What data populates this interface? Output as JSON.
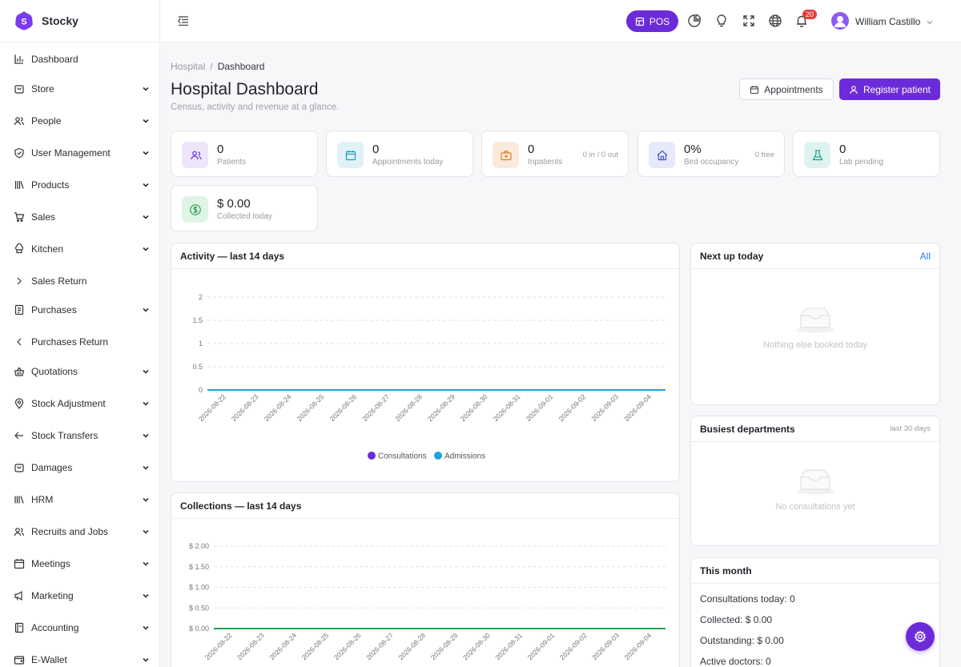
{
  "brand": {
    "name": "Stocky"
  },
  "sidebar": {
    "items": [
      {
        "label": "Dashboard",
        "icon": "bar-chart-icon",
        "chevron": "none"
      },
      {
        "label": "Store",
        "icon": "store-bag-icon",
        "chevron": "down"
      },
      {
        "label": "People",
        "icon": "users-icon",
        "chevron": "down"
      },
      {
        "label": "User Management",
        "icon": "shield-check-icon",
        "chevron": "down"
      },
      {
        "label": "Products",
        "icon": "books-icon",
        "chevron": "down"
      },
      {
        "label": "Sales",
        "icon": "cart-icon",
        "chevron": "down"
      },
      {
        "label": "Kitchen",
        "icon": "chef-hat-icon",
        "chevron": "down"
      },
      {
        "label": "Sales Return",
        "icon": "chevron-right-icon",
        "chevron": "none"
      },
      {
        "label": "Purchases",
        "icon": "receipt-icon",
        "chevron": "down"
      },
      {
        "label": "Purchases Return",
        "icon": "chevron-left-icon",
        "chevron": "none"
      },
      {
        "label": "Quotations",
        "icon": "basket-icon",
        "chevron": "down"
      },
      {
        "label": "Stock Adjustment",
        "icon": "map-pin-icon",
        "chevron": "down"
      },
      {
        "label": "Stock Transfers",
        "icon": "arrow-left-icon",
        "chevron": "down"
      },
      {
        "label": "Damages",
        "icon": "damaged-bag-icon",
        "chevron": "down"
      },
      {
        "label": "HRM",
        "icon": "library-icon",
        "chevron": "down"
      },
      {
        "label": "Recruits and Jobs",
        "icon": "recruits-icon",
        "chevron": "down"
      },
      {
        "label": "Meetings",
        "icon": "calendar-icon",
        "chevron": "down"
      },
      {
        "label": "Marketing",
        "icon": "megaphone-icon",
        "chevron": "down"
      },
      {
        "label": "Accounting",
        "icon": "ledger-icon",
        "chevron": "down"
      },
      {
        "label": "E-Wallet",
        "icon": "wallet-icon",
        "chevron": "down"
      }
    ]
  },
  "topbar": {
    "pos_label": "POS",
    "notification_count": "20",
    "user_name": "William Castillo",
    "icons": [
      "menu-toggle-icon",
      "pie-chart-icon",
      "lightbulb-icon",
      "fullscreen-icon",
      "globe-icon",
      "bell-icon"
    ]
  },
  "breadcrumb": {
    "parent": "Hospital",
    "separator": "/",
    "current": "Dashboard"
  },
  "page": {
    "title": "Hospital Dashboard",
    "subtitle": "Census, activity and revenue at a glance.",
    "appointments_button": "Appointments",
    "register_button": "Register patient"
  },
  "stats": [
    {
      "value": "0",
      "label": "Patients",
      "side": "",
      "icon": "patients-icon",
      "bg": "#ede6fb",
      "fg": "#6c2bd9"
    },
    {
      "value": "0",
      "label": "Appointments today",
      "side": "",
      "icon": "calendar-icon",
      "bg": "#e0f1f7",
      "fg": "#1d9bc4"
    },
    {
      "value": "0",
      "label": "Inpatients",
      "side": "0 in / 0 out",
      "icon": "medical-bag-icon",
      "bg": "#fbeadb",
      "fg": "#e07b20"
    },
    {
      "value": "0%",
      "label": "Bed occupancy",
      "side": "0 free",
      "icon": "home-icon",
      "bg": "#e6e8fb",
      "fg": "#4b55d6"
    },
    {
      "value": "0",
      "label": "Lab pending",
      "side": "",
      "icon": "flask-icon",
      "bg": "#def3ef",
      "fg": "#1e9a83"
    },
    {
      "value": "$ 0.00",
      "label": "Collected today",
      "side": "",
      "icon": "dollar-circle-icon",
      "bg": "#e0f4e6",
      "fg": "#22a34a"
    }
  ],
  "activity_card": {
    "title": "Activity — last 14 days"
  },
  "collections_card": {
    "title": "Collections — last 14 days"
  },
  "next_up_card": {
    "title": "Next up today",
    "link": "All",
    "empty_text": "Nothing else booked today"
  },
  "departments_card": {
    "title": "Busiest departments",
    "meta": "last 30 days",
    "empty_text": "No consultations yet"
  },
  "month_card": {
    "title": "This month",
    "lines": [
      {
        "label": "Consultations today",
        "value": "0"
      },
      {
        "label": "Collected",
        "value": "$ 0.00"
      },
      {
        "label": "Outstanding",
        "value": "$ 0.00"
      },
      {
        "label": "Active doctors",
        "value": "0"
      }
    ]
  },
  "colors": {
    "accent": "#6c2bd9",
    "link": "#2f7fe6",
    "consultations": "#6c2bd9",
    "admissions": "#1aa3e0"
  },
  "chart_data": [
    {
      "type": "line",
      "title": "Activity — last 14 days",
      "x": [
        "2026-08-22",
        "2026-08-23",
        "2026-08-24",
        "2026-08-25",
        "2026-08-26",
        "2026-08-27",
        "2026-08-28",
        "2026-08-29",
        "2026-08-30",
        "2026-08-31",
        "2026-09-01",
        "2026-09-02",
        "2026-09-03",
        "2026-09-04"
      ],
      "series": [
        {
          "name": "Consultations",
          "values": [
            0,
            0,
            0,
            0,
            0,
            0,
            0,
            0,
            0,
            0,
            0,
            0,
            0,
            0
          ],
          "color": "#6c2bd9"
        },
        {
          "name": "Admissions",
          "values": [
            0,
            0,
            0,
            0,
            0,
            0,
            0,
            0,
            0,
            0,
            0,
            0,
            0,
            0
          ],
          "color": "#1aa3e0"
        }
      ],
      "y_ticks": [
        "0",
        "0.5",
        "1",
        "1.5",
        "2"
      ],
      "ylim": [
        0,
        2
      ],
      "grid": true,
      "legend": "bottom"
    },
    {
      "type": "line",
      "title": "Collections — last 14 days",
      "x": [
        "2026-08-22",
        "2026-08-23",
        "2026-08-24",
        "2026-08-25",
        "2026-08-26",
        "2026-08-27",
        "2026-08-28",
        "2026-08-29",
        "2026-08-30",
        "2026-08-31",
        "2026-09-01",
        "2026-09-02",
        "2026-09-03",
        "2026-09-04"
      ],
      "series": [
        {
          "values": [
            0,
            0,
            0,
            0,
            0,
            0,
            0,
            0,
            0,
            0,
            0,
            0,
            0,
            0
          ],
          "color": "#22a34a"
        }
      ],
      "y_ticks": [
        "$ 0.00",
        "$ 0.50",
        "$ 1.00",
        "$ 1.50",
        "$ 2.00"
      ],
      "ylim": [
        0,
        2
      ],
      "grid": true,
      "legend": "none"
    }
  ]
}
